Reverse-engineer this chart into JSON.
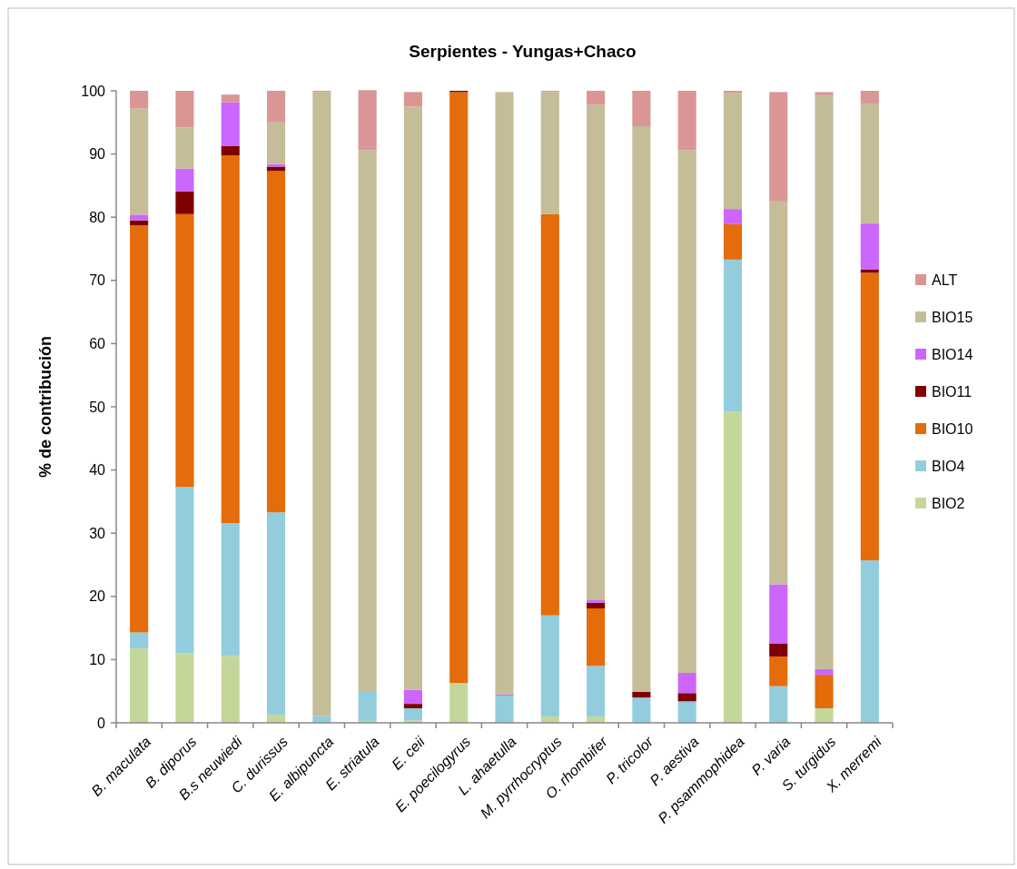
{
  "chart_data": {
    "type": "bar",
    "stacked": true,
    "title": "Serpientes - Yungas+Chaco",
    "ylabel": "% de contribución",
    "categories": [
      "B. maculata",
      "B. diporus",
      "B.s neuwiedi",
      "C. durissus",
      "E. albipuncta",
      "E. striatula",
      "E. ceii",
      "E. poecilogyrus",
      "L. ahaetulla",
      "M. pyrrhocryptus",
      "O. rhombifer",
      "P. tricolor",
      "P. aestiva",
      "P. psammophidea",
      "P. varia",
      "S. turgidus",
      "X. merremi"
    ],
    "series": [
      {
        "name": "BIO2",
        "color": "#c4d79b",
        "values": [
          11.8,
          11.0,
          10.6,
          1.3,
          0,
          0.3,
          0.4,
          6.3,
          0,
          1.0,
          1.0,
          0,
          0,
          49.2,
          0,
          2.3,
          0
        ]
      },
      {
        "name": "BIO4",
        "color": "#93cddd",
        "values": [
          2.5,
          26.3,
          21.0,
          32.0,
          1.1,
          4.6,
          1.9,
          0,
          4.3,
          16.0,
          8.0,
          4.0,
          3.4,
          24.1,
          5.8,
          0,
          25.7
        ]
      },
      {
        "name": "BIO10",
        "color": "#e46c0a",
        "values": [
          64.4,
          43.2,
          58.2,
          54.0,
          0,
          0,
          0,
          93.5,
          0,
          63.5,
          9.1,
          0,
          0,
          5.6,
          4.7,
          5.3,
          45.5
        ]
      },
      {
        "name": "BIO11",
        "color": "#7f0000",
        "values": [
          0.8,
          3.6,
          1.5,
          0.7,
          0,
          0,
          0.7,
          0.2,
          0,
          0,
          0.9,
          0.9,
          1.3,
          0,
          2.0,
          0,
          0.5
        ]
      },
      {
        "name": "BIO14",
        "color": "#cc66ff",
        "values": [
          0.9,
          3.6,
          6.9,
          0.4,
          0,
          0,
          2.2,
          0,
          0.2,
          0,
          0.4,
          0,
          3.2,
          2.4,
          9.4,
          0.9,
          7.3
        ]
      },
      {
        "name": "BIO15",
        "color": "#c4bd97",
        "values": [
          16.8,
          6.5,
          0,
          6.6,
          98.7,
          85.7,
          92.3,
          0,
          95.3,
          19.3,
          78.4,
          89.5,
          82.7,
          18.4,
          60.6,
          90.8,
          19.0
        ]
      },
      {
        "name": "ALT",
        "color": "#d99694",
        "values": [
          2.8,
          5.8,
          1.2,
          5.0,
          0.2,
          9.5,
          2.3,
          0,
          0,
          0.2,
          2.2,
          5.6,
          9.4,
          0.3,
          17.3,
          0.5,
          2.0
        ]
      }
    ],
    "ylim": [
      0,
      100
    ],
    "yticks": [
      0,
      10,
      20,
      30,
      40,
      50,
      60,
      70,
      80,
      90,
      100
    ],
    "grid": false,
    "legend": "right"
  }
}
